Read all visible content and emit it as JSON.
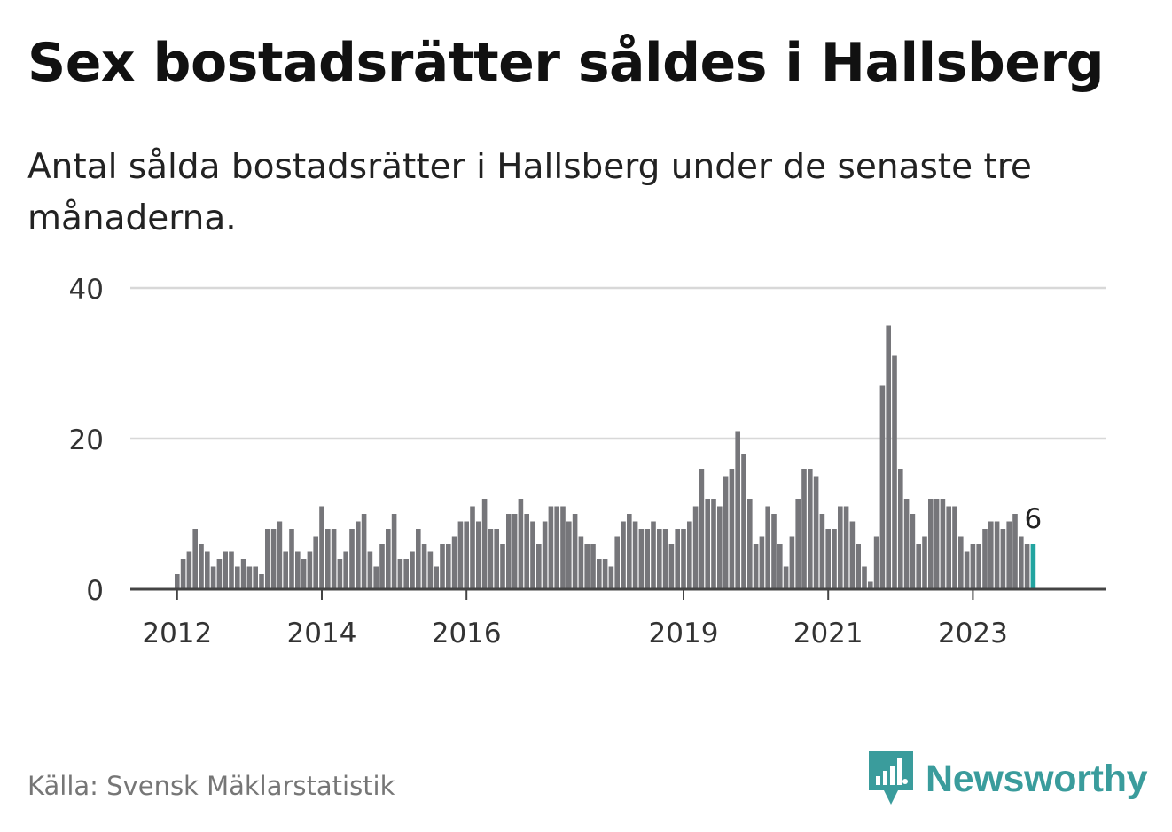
{
  "title": "Sex bostadsrätter såldes i Hallsberg",
  "subtitle": "Antal sålda bostadsrätter i Hallsberg under de senaste tre månaderna.",
  "source": "Källa: Svensk Mäklarstatistik",
  "brand": "Newsworthy",
  "colors": {
    "bar": "#76767a",
    "highlight": "#22a4a0",
    "grid": "#d8d8d8",
    "axis": "#444444",
    "brand": "#3a9c9c"
  },
  "chart_data": {
    "type": "bar",
    "title": "Sex bostadsrätter såldes i Hallsberg",
    "subtitle": "Antal sålda bostadsrätter i Hallsberg under de senaste tre månaderna.",
    "xlabel": "",
    "ylabel": "",
    "ylim": [
      0,
      40
    ],
    "yticks": [
      0,
      20,
      40
    ],
    "grid": true,
    "x_tick_labels": [
      "2012",
      "2014",
      "2016",
      "2019",
      "2021",
      "2023"
    ],
    "x_tick_indices": [
      0,
      24,
      48,
      84,
      108,
      132
    ],
    "values": [
      2,
      4,
      5,
      8,
      6,
      5,
      3,
      4,
      5,
      5,
      3,
      4,
      3,
      3,
      2,
      8,
      8,
      9,
      5,
      8,
      5,
      4,
      5,
      7,
      11,
      8,
      8,
      4,
      5,
      8,
      9,
      10,
      5,
      3,
      6,
      8,
      10,
      4,
      4,
      5,
      8,
      6,
      5,
      3,
      6,
      6,
      7,
      9,
      9,
      11,
      9,
      12,
      8,
      8,
      6,
      10,
      10,
      12,
      10,
      9,
      6,
      9,
      11,
      11,
      11,
      9,
      10,
      7,
      6,
      6,
      4,
      4,
      3,
      7,
      9,
      10,
      9,
      8,
      8,
      9,
      8,
      8,
      6,
      8,
      8,
      9,
      11,
      16,
      12,
      12,
      11,
      15,
      16,
      21,
      18,
      12,
      6,
      7,
      11,
      10,
      6,
      3,
      7,
      12,
      16,
      16,
      15,
      10,
      8,
      8,
      11,
      11,
      9,
      6,
      3,
      1,
      7,
      27,
      35,
      31,
      16,
      12,
      10,
      6,
      7,
      12,
      12,
      12,
      11,
      11,
      7,
      5,
      6,
      6,
      8,
      9,
      9,
      8,
      9,
      10,
      7,
      6,
      6
    ],
    "highlight_last": true,
    "last_value_label": "6"
  }
}
